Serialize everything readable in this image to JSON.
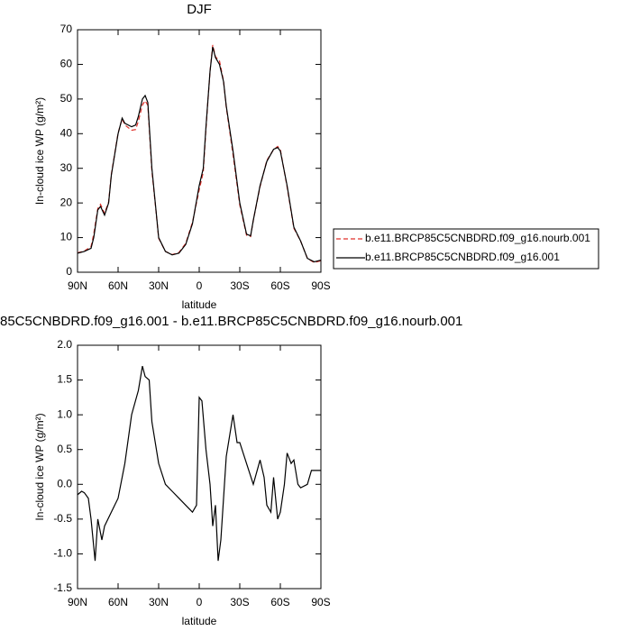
{
  "chart_data": [
    {
      "type": "line",
      "title": "DJF",
      "x_label": "latitude",
      "y_label": "In-cloud ice WP (g/m²)",
      "x": [
        90,
        85,
        80,
        78,
        75,
        73,
        70,
        67,
        65,
        60,
        57,
        55,
        50,
        47,
        45,
        42,
        40,
        38,
        35,
        32,
        30,
        25,
        20,
        15,
        10,
        5,
        0,
        -3,
        -5,
        -8,
        -10,
        -12,
        -15,
        -18,
        -20,
        -25,
        -30,
        -35,
        -38,
        -40,
        -45,
        -50,
        -55,
        -58,
        -60,
        -65,
        -70,
        -75,
        -80,
        -85,
        -90
      ],
      "series": [
        {
          "name": "b.e11.BRCP85C5CNBDRD.f09_g16.nourb.001",
          "color": "#e0302a",
          "line_style": "dashed",
          "values": [
            5.6,
            6.1,
            7.4,
            11,
            18.4,
            19.6,
            17,
            20.3,
            28.3,
            40.2,
            44.3,
            42.5,
            41,
            41.2,
            43.6,
            48.3,
            49.5,
            48.2,
            29.2,
            17.8,
            9.8,
            6,
            5.1,
            5.7,
            8.3,
            14.4,
            23.8,
            28.9,
            41.5,
            58,
            65.6,
            62.2,
            61,
            55.2,
            47.6,
            34,
            19.4,
            10.7,
            10.3,
            15,
            24.7,
            32.3,
            35.4,
            36.3,
            35.4,
            24.6,
            12.7,
            9,
            4,
            2.8,
            3.3
          ]
        },
        {
          "name": "b.e11.BRCP85C5CNBDRD.f09_g16.001",
          "color": "#000000",
          "line_style": "solid",
          "values": [
            5.5,
            6,
            6.9,
            10,
            18,
            19,
            16.5,
            20,
            28,
            40,
            44.5,
            43,
            42,
            42.5,
            45,
            50,
            51,
            49,
            30,
            18,
            10,
            6,
            5,
            5.5,
            8,
            14,
            25,
            30,
            42,
            58,
            65,
            62,
            60,
            55,
            48,
            35,
            20,
            11,
            10.5,
            15,
            25,
            32,
            35.5,
            36,
            35,
            25,
            13,
            9,
            4,
            3,
            3.5
          ]
        }
      ],
      "legend": "right",
      "xlim": [
        90,
        -90
      ],
      "xticks": [
        {
          "value": 90,
          "label": "90N"
        },
        {
          "value": 60,
          "label": "60N"
        },
        {
          "value": 30,
          "label": "30N"
        },
        0,
        {
          "value": -30,
          "label": "30S"
        },
        {
          "value": -60,
          "label": "60S"
        },
        {
          "value": -90,
          "label": "90S"
        }
      ],
      "ylim": [
        0,
        70
      ],
      "yticks": [
        0,
        10,
        20,
        30,
        40,
        50,
        60,
        70
      ]
    },
    {
      "type": "line",
      "title": "85C5CNBDRD.f09_g16.001 - b.e11.BRCP85C5CNBDRD.f09_g16.nourb.001",
      "x_label": "latitude",
      "y_label": "In-cloud ice WP (g/m²)",
      "x": [
        90,
        87,
        85,
        82,
        80,
        77,
        75,
        72,
        70,
        65,
        60,
        55,
        50,
        45,
        42,
        40,
        37,
        35,
        30,
        25,
        20,
        15,
        10,
        5,
        2,
        0,
        -2,
        -5,
        -8,
        -10,
        -12,
        -14,
        -16,
        -18,
        -20,
        -25,
        -28,
        -30,
        -35,
        -40,
        -45,
        -48,
        -50,
        -53,
        -55,
        -58,
        -60,
        -63,
        -65,
        -68,
        -70,
        -73,
        -75,
        -80,
        -83,
        -87,
        -90
      ],
      "series": [
        {
          "name": null,
          "color": "#000000",
          "line_style": "solid",
          "values": [
            -0.15,
            -0.1,
            -0.12,
            -0.2,
            -0.5,
            -1.1,
            -0.5,
            -0.8,
            -0.6,
            -0.4,
            -0.2,
            0.3,
            1.0,
            1.35,
            1.7,
            1.55,
            1.5,
            0.9,
            0.3,
            0.0,
            -0.1,
            -0.2,
            -0.3,
            -0.4,
            -0.3,
            1.25,
            1.2,
            0.5,
            0.0,
            -0.6,
            -0.3,
            -1.1,
            -0.8,
            -0.2,
            0.4,
            1.0,
            0.6,
            0.6,
            0.3,
            0.0,
            0.35,
            0.1,
            -0.3,
            -0.4,
            0.1,
            -0.5,
            -0.4,
            0.0,
            0.45,
            0.3,
            0.35,
            0.0,
            -0.05,
            0.0,
            0.2,
            0.2,
            0.2
          ]
        }
      ],
      "xlim": [
        90,
        -90
      ],
      "xticks": [
        {
          "value": 90,
          "label": "90N"
        },
        {
          "value": 60,
          "label": "60N"
        },
        {
          "value": 30,
          "label": "30N"
        },
        0,
        {
          "value": -30,
          "label": "30S"
        },
        {
          "value": -60,
          "label": "60S"
        },
        {
          "value": -90,
          "label": "90S"
        }
      ],
      "ylim": [
        -1.5,
        2.0
      ],
      "yticks": [
        -1.5,
        {
          "value": -1.0,
          "label": "-1.0"
        },
        -0.5,
        {
          "value": 0.0,
          "label": "0.0"
        },
        0.5,
        {
          "value": 1.0,
          "label": "1.0"
        },
        1.5,
        {
          "value": 2.0,
          "label": "2.0"
        }
      ]
    }
  ]
}
